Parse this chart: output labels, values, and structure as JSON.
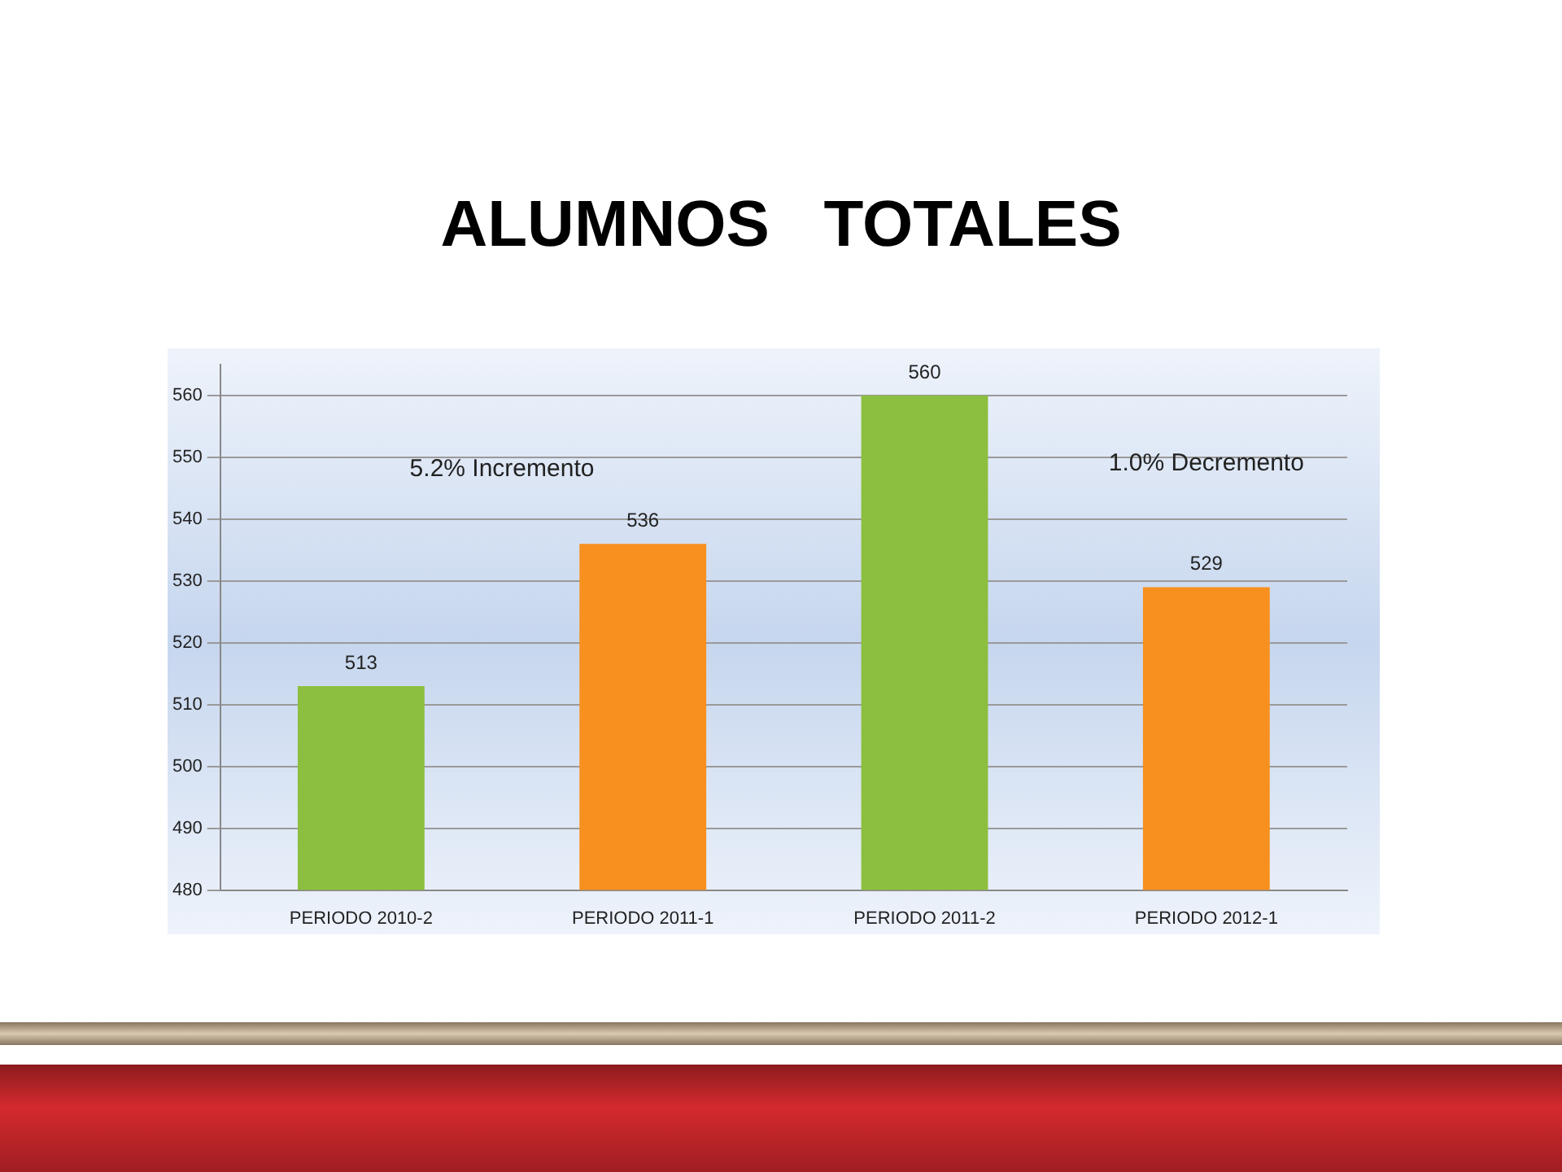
{
  "chart_data": {
    "type": "bar",
    "title": "ALUMNOS   TOTALES",
    "categories": [
      "PERIODO 2010-2",
      "PERIODO 2011-1",
      "PERIODO 2011-2",
      "PERIODO 2012-1"
    ],
    "values": [
      513,
      536,
      560,
      529
    ],
    "colors": [
      "#8cbf3f",
      "#f7901e",
      "#8cbf3f",
      "#f7901e"
    ],
    "ylim": [
      480,
      565
    ],
    "yticks": [
      480,
      490,
      500,
      510,
      520,
      530,
      540,
      550,
      560
    ],
    "grid": "y",
    "legend": false,
    "data_labels": true,
    "annotations": [
      "5.2% Incremento",
      "1.0% Decremento"
    ]
  }
}
